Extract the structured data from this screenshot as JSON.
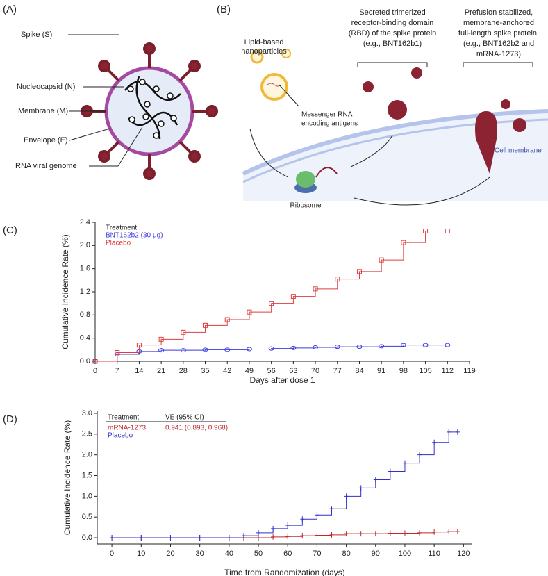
{
  "panel_a": {
    "label": "(A)",
    "labels": [
      "Spike (S)",
      "Nucleocapsid (N)",
      "Membrane (M)",
      "Envelope (E)",
      "RNA viral genome"
    ]
  },
  "panel_b": {
    "label": "(B)",
    "nanoparticles": [
      "Lipid-based",
      "nanoparticles"
    ],
    "secreted": [
      "Secreted trimerized",
      "receptor-binding domain",
      "(RBD) of the spike protein",
      "(e.g., BNT162b1)"
    ],
    "prefusion": [
      "Prefusion stabilized,",
      "membrane-anchored",
      "full-length spike protein.",
      "(e.g., BNT162b2 and",
      "mRNA-1273)"
    ],
    "mrna": [
      "Messenger RNA",
      "encoding antigens"
    ],
    "ribosome": "Ribosome",
    "membrane": "Cell membrane"
  },
  "chart_data": [
    {
      "type": "line",
      "step": true,
      "panel_label": "(C)",
      "x_label": "Days after dose 1",
      "y_label": "Cumulative Incidence Rate (%)",
      "legend_title": "Treatment",
      "legend": "upper left",
      "x": [
        0,
        7,
        14,
        21,
        28,
        35,
        42,
        49,
        56,
        63,
        70,
        77,
        84,
        91,
        98,
        105,
        112
      ],
      "series": [
        {
          "name": "BNT162b2 (30 μg)",
          "color": "#3a3adf",
          "marker": "circle",
          "values": [
            0,
            0.12,
            0.17,
            0.19,
            0.19,
            0.2,
            0.2,
            0.21,
            0.22,
            0.23,
            0.24,
            0.25,
            0.25,
            0.26,
            0.28,
            0.28,
            0.28
          ]
        },
        {
          "name": "Placebo",
          "color": "#e03c3c",
          "marker": "square",
          "values": [
            0,
            0.15,
            0.28,
            0.38,
            0.5,
            0.62,
            0.72,
            0.85,
            1.0,
            1.12,
            1.25,
            1.42,
            1.55,
            1.75,
            2.05,
            2.25,
            2.25
          ]
        }
      ],
      "xlim": [
        0,
        119
      ],
      "xticks": [
        0,
        7,
        14,
        21,
        28,
        35,
        42,
        49,
        56,
        63,
        70,
        77,
        84,
        91,
        98,
        105,
        112,
        119
      ],
      "ylim": [
        0,
        2.4
      ],
      "yticks": [
        {
          "value": 0,
          "label": "0.0"
        },
        0.4,
        0.8,
        1.2,
        1.6,
        {
          "value": 2,
          "label": "2.0"
        },
        2.4
      ]
    },
    {
      "type": "line",
      "step": true,
      "panel_label": "(D)",
      "x_label": "Time from Randomization (days)",
      "y_label": "Cumulative Incidence Rate (%)",
      "legend_title": "Treatment",
      "legend": "upper left",
      "ve_header": "VE (95% CI)",
      "ve_label": "0.941 (0.893, 0.968)",
      "x": [
        0,
        10,
        20,
        30,
        40,
        45,
        50,
        55,
        60,
        65,
        70,
        75,
        80,
        85,
        90,
        95,
        100,
        105,
        110,
        115,
        118
      ],
      "series": [
        {
          "name": "mRNA-1273",
          "color": "#c0282e",
          "marker": "plus",
          "values": [
            0,
            0,
            0,
            0,
            0,
            0,
            0,
            0.02,
            0.03,
            0.05,
            0.06,
            0.07,
            0.1,
            0.1,
            0.1,
            0.11,
            0.11,
            0.12,
            0.14,
            0.15,
            0.15
          ]
        },
        {
          "name": "Placebo",
          "color": "#3030c8",
          "marker": "plus",
          "values": [
            0,
            0,
            0,
            0,
            0,
            0.05,
            0.12,
            0.22,
            0.3,
            0.45,
            0.55,
            0.7,
            1.0,
            1.2,
            1.4,
            1.6,
            1.8,
            2.0,
            2.3,
            2.55,
            2.55
          ]
        }
      ],
      "xlim": [
        -5,
        123
      ],
      "xticks": [
        0,
        10,
        20,
        30,
        40,
        50,
        60,
        70,
        80,
        90,
        100,
        110,
        120
      ],
      "ylim": [
        -0.15,
        3.05
      ],
      "yticks": [
        {
          "value": 0,
          "label": "0.0"
        },
        0.5,
        {
          "value": 1,
          "label": "1.0"
        },
        1.5,
        {
          "value": 2,
          "label": "2.0"
        },
        2.5,
        {
          "value": 3,
          "label": "3.0"
        }
      ]
    }
  ]
}
